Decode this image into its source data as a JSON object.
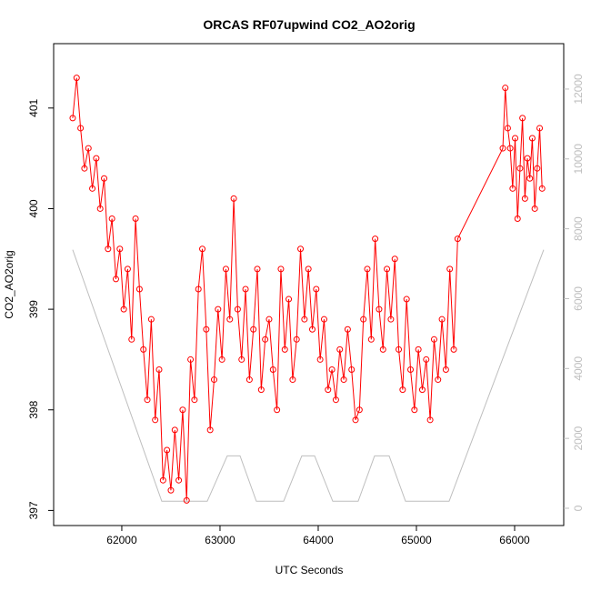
{
  "chart_data": {
    "type": "line",
    "title": "ORCAS RF07upwind CO2_AO2orig",
    "x_label": "UTC Seconds",
    "y_label": "CO2_AO2orig",
    "xlim": [
      61306,
      66500
    ],
    "xticks": [
      62000,
      63000,
      64000,
      65000,
      66000
    ],
    "ylim": [
      396.85,
      401.64
    ],
    "yticks": [
      397,
      398,
      399,
      400,
      401
    ],
    "y2lim": [
      -495,
      13300
    ],
    "y2ticks": [
      0,
      2000,
      4000,
      6000,
      8000,
      10000,
      12000
    ],
    "y2_color": "#bebebe",
    "series": [
      {
        "color": "#bebebe",
        "axis": "y2",
        "markers": false,
        "x": [
          61500,
          62407,
          62870,
          63074,
          63204,
          63370,
          63648,
          63833,
          63963,
          64148,
          64407,
          64574,
          64722,
          64889,
          65333,
          66296
        ],
        "values": [
          7400,
          200,
          200,
          1500,
          1500,
          200,
          200,
          1500,
          1500,
          200,
          200,
          1500,
          1500,
          200,
          200,
          7400
        ]
      },
      {
        "color": "#ff0000",
        "axis": "y",
        "markers": true,
        "x": [
          61500,
          61540,
          61580,
          61620,
          61660,
          61700,
          61740,
          61780,
          61820,
          61860,
          61900,
          61940,
          61980,
          62020,
          62060,
          62100,
          62140,
          62180,
          62220,
          62260,
          62300,
          62340,
          62380,
          62420,
          62460,
          62500,
          62540,
          62580,
          62620,
          62660,
          62700,
          62740,
          62780,
          62820,
          62860,
          62900,
          62940,
          62980,
          63020,
          63060,
          63100,
          63140,
          63180,
          63220,
          63260,
          63300,
          63340,
          63380,
          63420,
          63460,
          63500,
          63540,
          63580,
          63620,
          63660,
          63700,
          63740,
          63780,
          63820,
          63860,
          63900,
          63940,
          63980,
          64020,
          64060,
          64100,
          64140,
          64180,
          64220,
          64260,
          64300,
          64340,
          64380,
          64420,
          64460,
          64500,
          64540,
          64580,
          64620,
          64660,
          64700,
          64740,
          64780,
          64820,
          64860,
          64900,
          64940,
          64980,
          65020,
          65060,
          65100,
          65140,
          65180,
          65220,
          65260,
          65300,
          65340,
          65380,
          65420,
          65880,
          65905,
          65930,
          65955,
          65980,
          66005,
          66030,
          66055,
          66080,
          66105,
          66130,
          66155,
          66180,
          66205,
          66230,
          66255,
          66280
        ],
        "values": [
          400.9,
          401.3,
          400.8,
          400.4,
          400.6,
          400.2,
          400.5,
          400.0,
          400.3,
          399.6,
          399.9,
          399.3,
          399.6,
          399.0,
          399.4,
          398.7,
          399.9,
          399.2,
          398.6,
          398.1,
          398.9,
          397.9,
          398.4,
          397.3,
          397.6,
          397.2,
          397.8,
          397.3,
          398.0,
          397.1,
          398.5,
          398.1,
          399.2,
          399.6,
          398.8,
          397.8,
          398.3,
          399.0,
          398.5,
          399.4,
          398.9,
          400.1,
          399.0,
          398.5,
          399.2,
          398.3,
          398.8,
          399.4,
          398.2,
          398.7,
          398.9,
          398.4,
          398.0,
          399.4,
          398.6,
          399.1,
          398.3,
          398.7,
          399.6,
          398.9,
          399.4,
          398.8,
          399.2,
          398.5,
          398.9,
          398.2,
          398.4,
          398.1,
          398.6,
          398.3,
          398.8,
          398.4,
          397.9,
          398.0,
          398.9,
          399.4,
          398.7,
          399.7,
          399.0,
          398.6,
          399.4,
          398.9,
          399.5,
          398.6,
          398.2,
          399.1,
          398.4,
          398.0,
          398.6,
          398.2,
          398.5,
          397.9,
          398.7,
          398.3,
          398.9,
          398.4,
          399.4,
          398.6,
          399.7,
          400.6,
          401.2,
          400.8,
          400.6,
          400.2,
          400.7,
          399.9,
          400.4,
          400.9,
          400.1,
          400.5,
          400.3,
          400.7,
          400.0,
          400.4,
          400.8,
          400.2
        ]
      }
    ]
  }
}
